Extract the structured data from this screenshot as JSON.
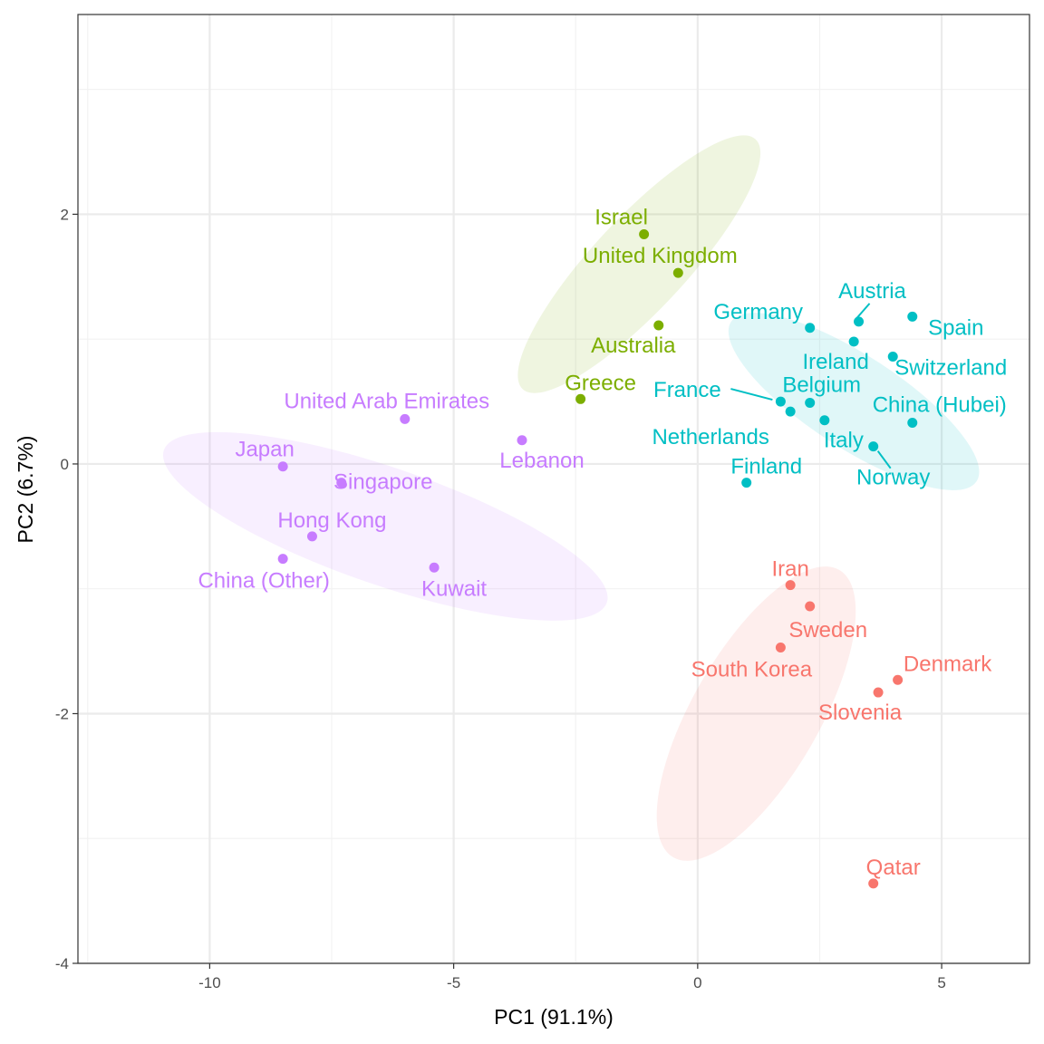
{
  "chart_data": {
    "type": "scatter",
    "title": "",
    "xlabel": "PC1 (91.1%)",
    "ylabel": "PC2 (6.7%)",
    "xlim": [
      -12.7,
      6.8
    ],
    "ylim": [
      -4.0,
      3.6
    ],
    "x_ticks": [
      -10,
      -5,
      0,
      5
    ],
    "y_ticks": [
      -4,
      -2,
      0,
      2
    ],
    "x_tick_labels": [
      "-10",
      "-5",
      "0",
      "5"
    ],
    "y_tick_labels": [
      "-4",
      "-2",
      "0",
      "2"
    ],
    "grid": true,
    "legend": "none",
    "colors": {
      "red": "#F8766D",
      "green": "#7CAE00",
      "cyan": "#00BFC4",
      "purple": "#C77CFF"
    },
    "series": [
      {
        "color": "#F8766D",
        "ellipse": {
          "cx": 1.2,
          "cy": -2.0,
          "rx": 3.4,
          "ry": 1.3,
          "angle": -60
        },
        "points": [
          {
            "label": "Iran",
            "x": 1.9,
            "y": -0.97
          },
          {
            "label": "",
            "x": 2.3,
            "y": -1.14
          },
          {
            "label": "Sweden",
            "x": 2.3,
            "y": -1.14,
            "hide_point": true
          },
          {
            "label": "South Korea",
            "x": 1.7,
            "y": -1.47
          },
          {
            "label": "Denmark",
            "x": 4.1,
            "y": -1.73
          },
          {
            "label": "Slovenia",
            "x": 3.7,
            "y": -1.83
          },
          {
            "label": "Qatar",
            "x": 3.6,
            "y": -3.36
          }
        ]
      },
      {
        "color": "#7CAE00",
        "ellipse": {
          "cx": -1.2,
          "cy": 1.6,
          "rx": 3.5,
          "ry": 0.95,
          "angle": -47
        },
        "points": [
          {
            "label": "Israel",
            "x": -1.1,
            "y": 1.84
          },
          {
            "label": "United Kingdom",
            "x": -0.4,
            "y": 1.53
          },
          {
            "label": "Australia",
            "x": -0.8,
            "y": 1.11
          },
          {
            "label": "Greece",
            "x": -2.4,
            "y": 0.52
          }
        ]
      },
      {
        "color": "#00BFC4",
        "ellipse": {
          "cx": 3.2,
          "cy": 0.5,
          "rx": 3.0,
          "ry": 0.95,
          "angle": 33
        },
        "points": [
          {
            "label": "Germany",
            "x": 2.3,
            "y": 1.09
          },
          {
            "label": "Austria",
            "x": 3.3,
            "y": 1.14
          },
          {
            "label": "Spain",
            "x": 4.4,
            "y": 1.18
          },
          {
            "label": "Ireland",
            "x": 3.2,
            "y": 0.98
          },
          {
            "label": "Switzerland",
            "x": 4.0,
            "y": 0.86
          },
          {
            "label": "Belgium",
            "x": 2.3,
            "y": 0.49
          },
          {
            "label": "France",
            "x": 1.7,
            "y": 0.5
          },
          {
            "label": "Netherlands",
            "x": 1.9,
            "y": 0.42
          },
          {
            "label": "",
            "x": 2.6,
            "y": 0.35
          },
          {
            "label": "China (Hubei)",
            "x": 4.4,
            "y": 0.33
          },
          {
            "label": "Italy",
            "x": 2.6,
            "y": 0.35,
            "hide_point": true
          },
          {
            "label": "Norway",
            "x": 3.6,
            "y": 0.14
          },
          {
            "label": "Finland",
            "x": 1.0,
            "y": -0.15
          }
        ]
      },
      {
        "color": "#C77CFF",
        "ellipse": {
          "cx": -6.4,
          "cy": -0.5,
          "rx": 4.8,
          "ry": 1.2,
          "angle": 19
        },
        "points": [
          {
            "label": "United Arab Emirates",
            "x": -6.0,
            "y": 0.36
          },
          {
            "label": "Lebanon",
            "x": -3.6,
            "y": 0.19
          },
          {
            "label": "Japan",
            "x": -8.5,
            "y": -0.02
          },
          {
            "label": "Singapore",
            "x": -7.3,
            "y": -0.15
          },
          {
            "label": "Hong Kong",
            "x": -7.9,
            "y": -0.58
          },
          {
            "label": "China (Other)",
            "x": -8.5,
            "y": -0.76
          },
          {
            "label": "Kuwait",
            "x": -5.4,
            "y": -0.83
          }
        ]
      }
    ]
  }
}
